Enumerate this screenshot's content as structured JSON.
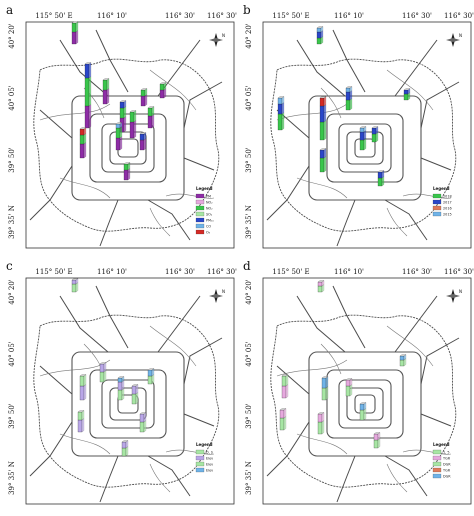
{
  "grid": {
    "top_labels": [
      "115° 50' E",
      "116° 10'",
      "116° 30'",
      "116° 30'"
    ],
    "left_labels": [
      "40° 20'",
      "40° 05'",
      "39° 50'",
      "39° 35' N"
    ]
  },
  "north_label": "N",
  "legend_title": "Legend",
  "colors": {
    "road": "#4d4d4d",
    "ring": "#555555",
    "green": "#39c64b",
    "purple": "#8e2ca6",
    "blue": "#2a46c9",
    "lightblue": "#6fb3e8",
    "red": "#d42a25",
    "pink": "#e6a8de",
    "lightpurple": "#b9a6e8",
    "lightgreen": "#a7e6a4",
    "teal": "#5fd0c5",
    "orange": "#e07b5a"
  },
  "panels": [
    {
      "label": "a",
      "legend": [
        {
          "color": "purple",
          "text": "PM"
        },
        {
          "color": "pink",
          "text": "NO₂"
        },
        {
          "color": "green",
          "text": "NO₂"
        },
        {
          "color": "lightgreen",
          "text": "SO₂"
        },
        {
          "color": "blue",
          "text": "PM₁₀"
        },
        {
          "color": "lightblue",
          "text": "CO"
        },
        {
          "color": "red",
          "text": "O₃"
        }
      ]
    },
    {
      "label": "b",
      "legend": [
        {
          "color": "green",
          "text": "2018"
        },
        {
          "color": "blue",
          "text": "2017"
        },
        {
          "color": "orange",
          "text": "2016"
        },
        {
          "color": "lightblue",
          "text": "2015"
        }
      ]
    },
    {
      "label": "c",
      "legend": [
        {
          "color": "lightgreen",
          "text": "D, S"
        },
        {
          "color": "lightpurple",
          "text": "Elev"
        },
        {
          "color": "lightgreen",
          "text": "Elev"
        },
        {
          "color": "lightblue",
          "text": "Elev"
        }
      ]
    },
    {
      "label": "d",
      "legend": [
        {
          "color": "lightgreen",
          "text": "1, 5"
        },
        {
          "color": "pink",
          "text": "TGR"
        },
        {
          "color": "lightgreen",
          "text": "DGR"
        },
        {
          "color": "orange",
          "text": "TGR"
        },
        {
          "color": "lightblue",
          "text": "DGR"
        }
      ]
    }
  ],
  "panel_bars": {
    "a": [
      {
        "x": 72,
        "y": 44,
        "h": [
          12,
          9
        ],
        "c": [
          "purple",
          "green"
        ]
      },
      {
        "x": 85,
        "y": 128,
        "h": [
          22,
          28,
          14
        ],
        "c": [
          "purple",
          "green",
          "blue"
        ]
      },
      {
        "x": 80,
        "y": 158,
        "h": [
          14,
          9,
          6
        ],
        "c": [
          "purple",
          "green",
          "red"
        ]
      },
      {
        "x": 103,
        "y": 104,
        "h": [
          14,
          10
        ],
        "c": [
          "purple",
          "green"
        ]
      },
      {
        "x": 120,
        "y": 132,
        "h": [
          14,
          10,
          6
        ],
        "c": [
          "purple",
          "green",
          "blue"
        ]
      },
      {
        "x": 130,
        "y": 138,
        "h": [
          16,
          10
        ],
        "c": [
          "purple",
          "green"
        ]
      },
      {
        "x": 116,
        "y": 150,
        "h": [
          12,
          10,
          4
        ],
        "c": [
          "purple",
          "green",
          "lightblue"
        ]
      },
      {
        "x": 141,
        "y": 106,
        "h": [
          10,
          6
        ],
        "c": [
          "purple",
          "green"
        ]
      },
      {
        "x": 160,
        "y": 98,
        "h": [
          8,
          6
        ],
        "c": [
          "purple",
          "green"
        ]
      },
      {
        "x": 148,
        "y": 128,
        "h": [
          12,
          8
        ],
        "c": [
          "purple",
          "green"
        ]
      },
      {
        "x": 124,
        "y": 180,
        "h": [
          10,
          6
        ],
        "c": [
          "purple",
          "green"
        ]
      },
      {
        "x": 140,
        "y": 150,
        "h": [
          10,
          6
        ],
        "c": [
          "purple",
          "blue"
        ]
      }
    ],
    "b": [
      {
        "x": 317,
        "y": 44,
        "h": [
          6,
          6,
          4
        ],
        "c": [
          "green",
          "blue",
          "lightblue"
        ]
      },
      {
        "x": 278,
        "y": 130,
        "h": [
          16,
          10,
          6
        ],
        "c": [
          "green",
          "blue",
          "lightblue"
        ]
      },
      {
        "x": 320,
        "y": 140,
        "h": [
          18,
          16,
          8
        ],
        "c": [
          "green",
          "blue",
          "red"
        ]
      },
      {
        "x": 346,
        "y": 110,
        "h": [
          10,
          8,
          4
        ],
        "c": [
          "green",
          "blue",
          "lightblue"
        ]
      },
      {
        "x": 360,
        "y": 150,
        "h": [
          10,
          8,
          4
        ],
        "c": [
          "green",
          "blue",
          "lightblue"
        ]
      },
      {
        "x": 320,
        "y": 172,
        "h": [
          14,
          8
        ],
        "c": [
          "green",
          "blue"
        ]
      },
      {
        "x": 378,
        "y": 186,
        "h": [
          8,
          6
        ],
        "c": [
          "green",
          "blue"
        ]
      },
      {
        "x": 404,
        "y": 100,
        "h": [
          6,
          4
        ],
        "c": [
          "green",
          "blue"
        ]
      },
      {
        "x": 372,
        "y": 142,
        "h": [
          8,
          6
        ],
        "c": [
          "green",
          "blue"
        ]
      }
    ],
    "c": [
      {
        "x": 72,
        "y": 292,
        "h": [
          8,
          4
        ],
        "c": [
          "lightgreen",
          "lightpurple"
        ]
      },
      {
        "x": 80,
        "y": 400,
        "h": [
          14,
          10
        ],
        "c": [
          "lightpurple",
          "lightgreen"
        ]
      },
      {
        "x": 78,
        "y": 432,
        "h": [
          12,
          8
        ],
        "c": [
          "lightpurple",
          "lightgreen"
        ]
      },
      {
        "x": 100,
        "y": 382,
        "h": [
          10,
          8
        ],
        "c": [
          "lightgreen",
          "lightpurple"
        ]
      },
      {
        "x": 118,
        "y": 400,
        "h": [
          10,
          8,
          4
        ],
        "c": [
          "lightgreen",
          "lightpurple",
          "lightblue"
        ]
      },
      {
        "x": 132,
        "y": 404,
        "h": [
          10,
          8
        ],
        "c": [
          "lightgreen",
          "lightpurple"
        ]
      },
      {
        "x": 140,
        "y": 432,
        "h": [
          10,
          8
        ],
        "c": [
          "lightgreen",
          "lightpurple"
        ]
      },
      {
        "x": 122,
        "y": 456,
        "h": [
          8,
          6
        ],
        "c": [
          "lightgreen",
          "lightpurple"
        ]
      },
      {
        "x": 148,
        "y": 384,
        "h": [
          8,
          6
        ],
        "c": [
          "lightgreen",
          "lightblue"
        ]
      }
    ],
    "d": [
      {
        "x": 282,
        "y": 398,
        "h": [
          12,
          10
        ],
        "c": [
          "pink",
          "lightgreen"
        ]
      },
      {
        "x": 280,
        "y": 430,
        "h": [
          12,
          8
        ],
        "c": [
          "lightgreen",
          "pink"
        ]
      },
      {
        "x": 322,
        "y": 400,
        "h": [
          12,
          10
        ],
        "c": [
          "lightgreen",
          "lightblue"
        ]
      },
      {
        "x": 346,
        "y": 396,
        "h": [
          10,
          6
        ],
        "c": [
          "lightgreen",
          "pink"
        ]
      },
      {
        "x": 360,
        "y": 420,
        "h": [
          10,
          6
        ],
        "c": [
          "lightgreen",
          "lightblue"
        ]
      },
      {
        "x": 318,
        "y": 434,
        "h": [
          12,
          8
        ],
        "c": [
          "lightgreen",
          "pink"
        ]
      },
      {
        "x": 374,
        "y": 448,
        "h": [
          8,
          6
        ],
        "c": [
          "lightgreen",
          "pink"
        ]
      },
      {
        "x": 400,
        "y": 366,
        "h": [
          6,
          4
        ],
        "c": [
          "lightgreen",
          "lightblue"
        ]
      },
      {
        "x": 318,
        "y": 292,
        "h": [
          6,
          4
        ],
        "c": [
          "lightgreen",
          "pink"
        ]
      }
    ]
  }
}
